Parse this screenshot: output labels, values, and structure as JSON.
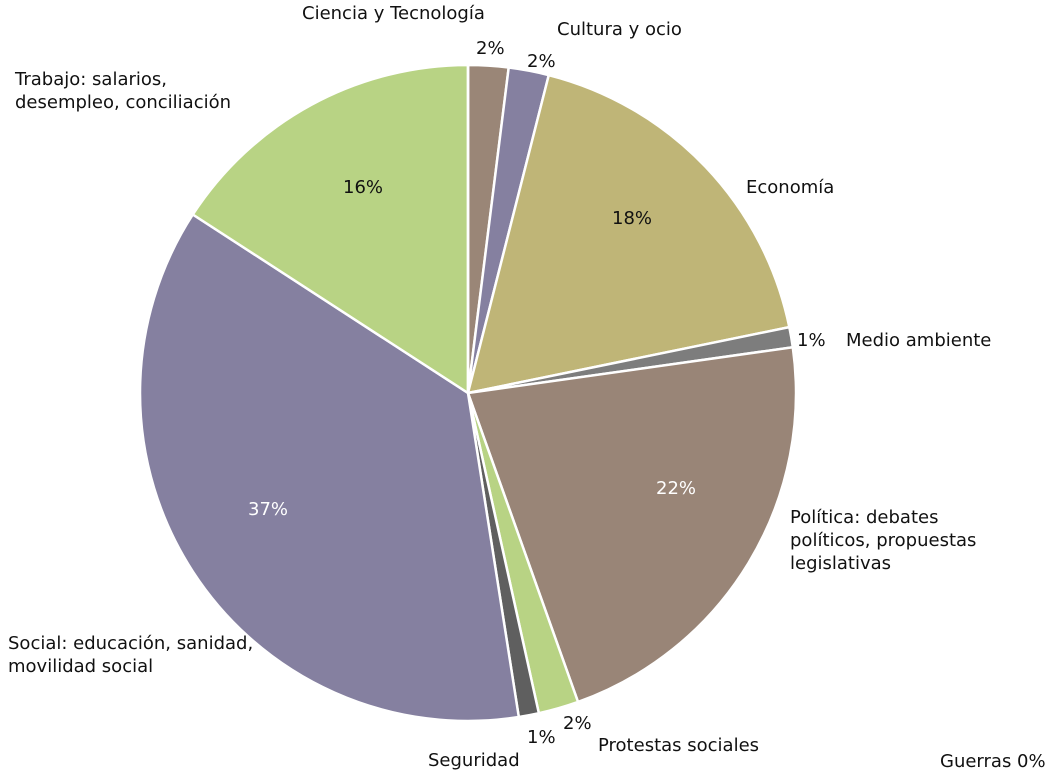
{
  "chart_data": {
    "type": "pie",
    "categories": [
      "Ciencia y Tecnología",
      "Cultura y ocio",
      "Economía",
      "Medio ambiente",
      "Política: debates políticos, propuestas legislativas",
      "Protestas sociales",
      "Seguridad",
      "Social: educación, sanidad, movilidad social",
      "Trabajo: salarios, desempleo, conciliación",
      "Guerras"
    ],
    "values": [
      2,
      2,
      18,
      1,
      22,
      2,
      1,
      37,
      16,
      0
    ],
    "value_labels": [
      "2%",
      "2%",
      "18%",
      "1%",
      "22%",
      "2%",
      "1%",
      "37%",
      "16%",
      "0%"
    ],
    "colors": [
      "#9a8677",
      "#8580a0",
      "#bfb577",
      "#7d7d7d",
      "#998577",
      "#b8d384",
      "#5f5f5f",
      "#8580a0",
      "#b8d384",
      "#8580a0"
    ]
  }
}
